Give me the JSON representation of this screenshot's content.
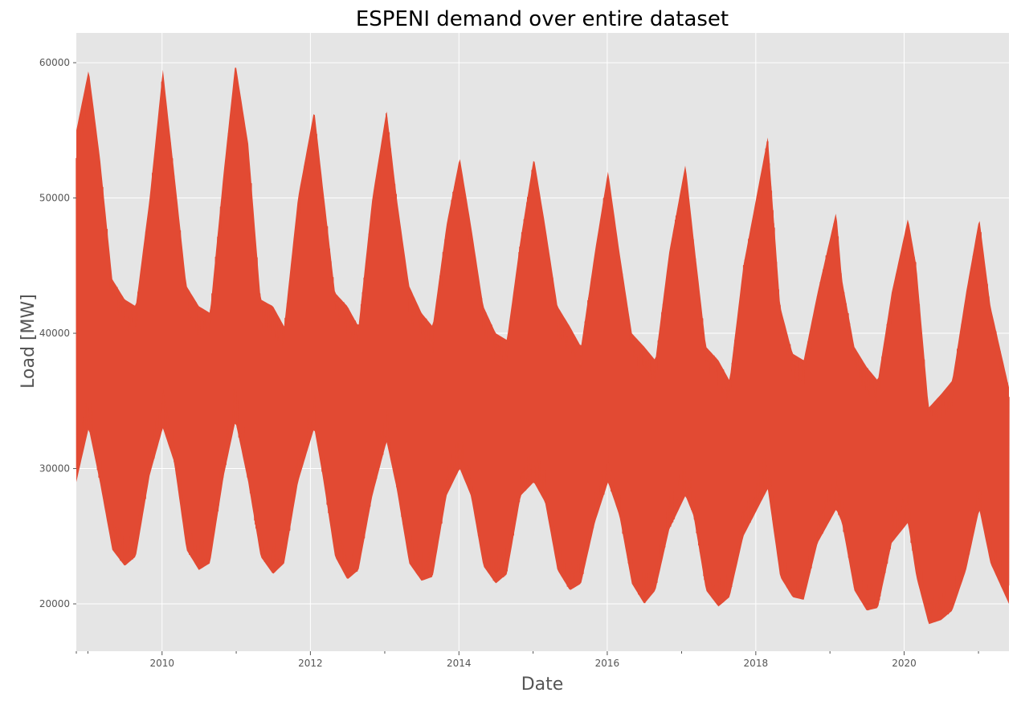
{
  "chart_data": {
    "type": "area",
    "title": "ESPENI demand over entire dataset",
    "xlabel": "Date",
    "ylabel": "Load [MW]",
    "xlim": [
      "2008-11-05",
      "2021-05-31"
    ],
    "ylim": [
      16500,
      62200
    ],
    "x_ticks": [
      "2010",
      "2012",
      "2014",
      "2016",
      "2018",
      "2020"
    ],
    "y_ticks": [
      "20000",
      "30000",
      "40000",
      "50000",
      "60000"
    ],
    "grid": true,
    "legend": "none",
    "color": "#E24A33",
    "background": "#E5E5E5",
    "series_envelope": {
      "description": "upper / lower envelope of half-hourly load",
      "x": [
        "2008-11-05",
        "2009-01-05",
        "2009-03-01",
        "2009-05-01",
        "2009-07-01",
        "2009-08-25",
        "2009-11-01",
        "2010-01-05",
        "2010-03-01",
        "2010-05-01",
        "2010-07-01",
        "2010-08-25",
        "2010-11-01",
        "2010-12-28",
        "2011-03-01",
        "2011-05-01",
        "2011-07-01",
        "2011-08-25",
        "2011-11-01",
        "2012-01-20",
        "2012-03-01",
        "2012-05-01",
        "2012-07-01",
        "2012-08-25",
        "2012-11-01",
        "2013-01-10",
        "2013-03-01",
        "2013-05-01",
        "2013-07-01",
        "2013-08-25",
        "2013-11-01",
        "2014-01-05",
        "2014-03-01",
        "2014-05-01",
        "2014-07-01",
        "2014-08-25",
        "2014-11-01",
        "2015-01-05",
        "2015-03-01",
        "2015-05-01",
        "2015-07-01",
        "2015-08-25",
        "2015-11-01",
        "2016-01-05",
        "2016-03-01",
        "2016-05-01",
        "2016-07-01",
        "2016-08-25",
        "2016-11-01",
        "2017-01-20",
        "2017-03-01",
        "2017-05-01",
        "2017-07-01",
        "2017-08-25",
        "2017-11-01",
        "2018-03-01",
        "2018-05-01",
        "2018-07-01",
        "2018-08-25",
        "2018-11-01",
        "2019-02-01",
        "2019-03-01",
        "2019-05-01",
        "2019-07-01",
        "2019-08-25",
        "2019-11-01",
        "2020-01-20",
        "2020-03-01",
        "2020-05-01",
        "2020-07-01",
        "2020-08-25",
        "2020-11-01",
        "2021-01-05",
        "2021-03-01",
        "2021-05-31"
      ],
      "upper": [
        55000,
        59500,
        53000,
        44000,
        42500,
        42000,
        50000,
        59500,
        52000,
        43500,
        42000,
        41500,
        52000,
        60000,
        54000,
        42500,
        42000,
        40500,
        50000,
        56500,
        51000,
        43000,
        42000,
        40500,
        50000,
        56500,
        50000,
        43500,
        41500,
        40500,
        48000,
        53000,
        48000,
        42000,
        40000,
        39500,
        47000,
        53000,
        48000,
        42000,
        40500,
        39000,
        46000,
        52000,
        46000,
        40000,
        39000,
        38000,
        46000,
        52500,
        47000,
        39000,
        38000,
        36500,
        45000,
        54500,
        42000,
        38500,
        38000,
        43000,
        49000,
        44000,
        39000,
        37500,
        36500,
        43000,
        48500,
        45000,
        34500,
        35500,
        36500,
        43000,
        48500,
        42000,
        36000
      ],
      "lower": [
        29000,
        33000,
        29000,
        24000,
        22800,
        23500,
        29500,
        33000,
        30500,
        24000,
        22500,
        23000,
        29500,
        33500,
        29000,
        23500,
        22200,
        23000,
        29000,
        33000,
        29500,
        23500,
        21800,
        22500,
        28000,
        32000,
        28500,
        23000,
        21700,
        22000,
        28000,
        30000,
        28000,
        22800,
        21500,
        22200,
        28000,
        29000,
        27500,
        22500,
        21000,
        21500,
        26000,
        29000,
        26500,
        21500,
        20000,
        21000,
        25500,
        28000,
        26500,
        21000,
        19800,
        20500,
        25000,
        28500,
        22000,
        20500,
        20300,
        24500,
        27000,
        26000,
        21000,
        19500,
        19700,
        24500,
        26000,
        22000,
        18500,
        18800,
        19500,
        22500,
        27000,
        23000,
        20000
      ]
    }
  }
}
